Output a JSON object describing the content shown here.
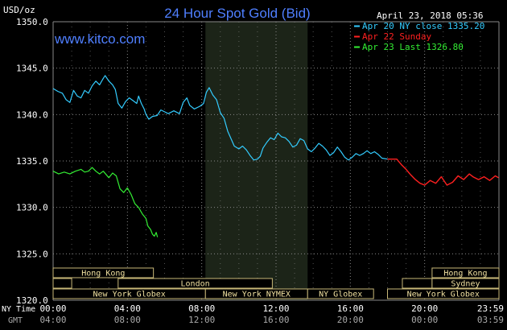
{
  "chart_data": {
    "type": "line",
    "title": "24 Hour Spot Gold (Bid)",
    "website": "www.kitco.com",
    "timestamp": "April 23, 2018 05:36",
    "y_unit_label": "USD/oz",
    "ylim": [
      1320,
      1350
    ],
    "yticks": [
      "1350.0",
      "1345.0",
      "1340.0",
      "1335.0",
      "1330.0",
      "1325.0",
      "1320.0"
    ],
    "x_axis_ny_label": "NY Time",
    "x_axis_gmt_label": "GMT",
    "xticks_ny": [
      "00:00",
      "04:00",
      "08:00",
      "12:00",
      "16:00",
      "20:00",
      "23:59"
    ],
    "xticks_gmt": [
      "04:00",
      "08:00",
      "12:00",
      "16:00",
      "20:00",
      "00:00",
      "03:59"
    ],
    "grid": true,
    "legend_position": "top-right",
    "highlight_range_ny_hours": [
      8.2,
      13.7
    ],
    "colors": {
      "background": "#000000",
      "title": "#4f7fff",
      "website": "#4f7fff",
      "grid": "#888888",
      "highlight": "#1c2418",
      "session_bar_fill": "#000000",
      "session_bar_stroke": "#c8b878",
      "session_bar_text": "#f0e0a0",
      "axis_text": "#ffffff",
      "gmt_text": "#aaaaaa"
    },
    "series": [
      {
        "name": "Apr 20 NY close 1335.20",
        "color": "#33ccff",
        "points": [
          [
            0.0,
            1342.8
          ],
          [
            0.25,
            1342.5
          ],
          [
            0.5,
            1342.3
          ],
          [
            0.7,
            1341.6
          ],
          [
            0.9,
            1341.3
          ],
          [
            1.1,
            1342.6
          ],
          [
            1.3,
            1342.0
          ],
          [
            1.5,
            1341.8
          ],
          [
            1.7,
            1342.6
          ],
          [
            1.9,
            1342.3
          ],
          [
            2.1,
            1343.1
          ],
          [
            2.3,
            1343.6
          ],
          [
            2.5,
            1343.2
          ],
          [
            2.7,
            1343.9
          ],
          [
            2.8,
            1344.2
          ],
          [
            3.0,
            1343.6
          ],
          [
            3.2,
            1343.2
          ],
          [
            3.35,
            1342.7
          ],
          [
            3.5,
            1341.2
          ],
          [
            3.7,
            1340.7
          ],
          [
            3.9,
            1341.4
          ],
          [
            4.1,
            1341.8
          ],
          [
            4.3,
            1341.5
          ],
          [
            4.5,
            1341.2
          ],
          [
            4.6,
            1342.0
          ],
          [
            4.75,
            1341.2
          ],
          [
            4.9,
            1340.6
          ],
          [
            5.0,
            1340.0
          ],
          [
            5.15,
            1339.5
          ],
          [
            5.35,
            1339.8
          ],
          [
            5.6,
            1339.9
          ],
          [
            5.8,
            1340.5
          ],
          [
            6.0,
            1340.3
          ],
          [
            6.2,
            1340.1
          ],
          [
            6.5,
            1340.4
          ],
          [
            6.8,
            1340.1
          ],
          [
            7.0,
            1341.3
          ],
          [
            7.2,
            1341.8
          ],
          [
            7.35,
            1341.0
          ],
          [
            7.6,
            1340.6
          ],
          [
            7.9,
            1340.9
          ],
          [
            8.1,
            1341.2
          ],
          [
            8.25,
            1342.4
          ],
          [
            8.4,
            1342.9
          ],
          [
            8.6,
            1342.1
          ],
          [
            8.8,
            1341.6
          ],
          [
            9.0,
            1340.2
          ],
          [
            9.2,
            1339.6
          ],
          [
            9.4,
            1338.2
          ],
          [
            9.6,
            1337.3
          ],
          [
            9.75,
            1336.6
          ],
          [
            10.0,
            1336.3
          ],
          [
            10.2,
            1336.6
          ],
          [
            10.4,
            1336.2
          ],
          [
            10.6,
            1335.6
          ],
          [
            10.8,
            1335.1
          ],
          [
            11.0,
            1335.2
          ],
          [
            11.15,
            1335.5
          ],
          [
            11.3,
            1336.4
          ],
          [
            11.5,
            1337.0
          ],
          [
            11.7,
            1337.5
          ],
          [
            11.9,
            1337.3
          ],
          [
            12.1,
            1338.0
          ],
          [
            12.3,
            1337.6
          ],
          [
            12.5,
            1337.5
          ],
          [
            12.7,
            1337.1
          ],
          [
            12.9,
            1336.5
          ],
          [
            13.1,
            1336.7
          ],
          [
            13.3,
            1337.4
          ],
          [
            13.5,
            1337.2
          ],
          [
            13.7,
            1336.3
          ],
          [
            13.9,
            1336.0
          ],
          [
            14.1,
            1336.4
          ],
          [
            14.3,
            1336.9
          ],
          [
            14.5,
            1336.6
          ],
          [
            14.7,
            1336.2
          ],
          [
            14.9,
            1335.6
          ],
          [
            15.1,
            1335.9
          ],
          [
            15.3,
            1336.5
          ],
          [
            15.5,
            1336.0
          ],
          [
            15.7,
            1335.4
          ],
          [
            15.9,
            1335.1
          ],
          [
            16.1,
            1335.4
          ],
          [
            16.3,
            1335.8
          ],
          [
            16.5,
            1335.6
          ],
          [
            16.7,
            1335.8
          ],
          [
            16.9,
            1336.1
          ],
          [
            17.1,
            1335.8
          ],
          [
            17.3,
            1336.0
          ],
          [
            17.5,
            1335.7
          ],
          [
            17.7,
            1335.3
          ],
          [
            18.0,
            1335.2
          ]
        ]
      },
      {
        "name": "Apr 22 Sunday",
        "color": "#ff2020",
        "points": [
          [
            18.0,
            1335.2
          ],
          [
            18.5,
            1335.2
          ],
          [
            18.75,
            1334.6
          ],
          [
            19.0,
            1334.1
          ],
          [
            19.25,
            1333.5
          ],
          [
            19.5,
            1333.0
          ],
          [
            19.75,
            1332.6
          ],
          [
            20.0,
            1332.4
          ],
          [
            20.3,
            1332.9
          ],
          [
            20.6,
            1332.6
          ],
          [
            20.9,
            1333.3
          ],
          [
            21.2,
            1332.4
          ],
          [
            21.5,
            1332.7
          ],
          [
            21.8,
            1333.4
          ],
          [
            22.1,
            1333.0
          ],
          [
            22.4,
            1333.6
          ],
          [
            22.6,
            1333.3
          ],
          [
            22.9,
            1333.0
          ],
          [
            23.2,
            1333.3
          ],
          [
            23.5,
            1332.9
          ],
          [
            23.8,
            1333.4
          ],
          [
            23.98,
            1333.2
          ]
        ]
      },
      {
        "name": "Apr 23 Last 1326.80",
        "color": "#33ee33",
        "points": [
          [
            0.0,
            1333.9
          ],
          [
            0.3,
            1333.6
          ],
          [
            0.6,
            1333.8
          ],
          [
            0.9,
            1333.6
          ],
          [
            1.2,
            1333.9
          ],
          [
            1.5,
            1334.1
          ],
          [
            1.7,
            1333.8
          ],
          [
            1.9,
            1333.9
          ],
          [
            2.1,
            1334.3
          ],
          [
            2.3,
            1333.9
          ],
          [
            2.5,
            1333.6
          ],
          [
            2.7,
            1333.9
          ],
          [
            3.0,
            1333.2
          ],
          [
            3.2,
            1333.7
          ],
          [
            3.4,
            1333.4
          ],
          [
            3.6,
            1332.0
          ],
          [
            3.8,
            1331.6
          ],
          [
            4.0,
            1332.1
          ],
          [
            4.2,
            1331.4
          ],
          [
            4.4,
            1330.4
          ],
          [
            4.6,
            1330.0
          ],
          [
            4.8,
            1329.3
          ],
          [
            5.0,
            1328.8
          ],
          [
            5.1,
            1328.0
          ],
          [
            5.25,
            1327.6
          ],
          [
            5.35,
            1327.1
          ],
          [
            5.45,
            1326.9
          ],
          [
            5.55,
            1327.3
          ],
          [
            5.62,
            1326.8
          ]
        ]
      }
    ],
    "session_bars": [
      {
        "label": "Hong Kong",
        "start": 0.0,
        "end": 5.4,
        "row": 0
      },
      {
        "label": "Hong Kong",
        "start": 20.4,
        "end": 24.0,
        "row": 0
      },
      {
        "label": "London",
        "start": 3.5,
        "end": 11.8,
        "row": 1
      },
      {
        "label": "",
        "start": 0.0,
        "end": 1.0,
        "row": 1
      },
      {
        "label": "",
        "start": 18.8,
        "end": 20.4,
        "row": 1
      },
      {
        "label": "Sydney",
        "start": 20.4,
        "end": 24.0,
        "row": 1
      },
      {
        "label": "New York Globex",
        "start": 0.0,
        "end": 8.2,
        "row": 2
      },
      {
        "label": "New York NYMEX",
        "start": 8.2,
        "end": 13.7,
        "row": 2
      },
      {
        "label": "NY Globex",
        "start": 13.7,
        "end": 17.25,
        "row": 2
      },
      {
        "label": "New York Globex",
        "start": 18.0,
        "end": 24.0,
        "row": 2
      }
    ]
  }
}
